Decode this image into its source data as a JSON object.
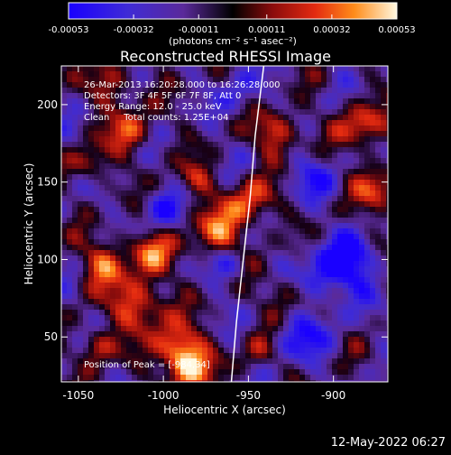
{
  "chart_data": {
    "type": "heatmap",
    "title": "Reconstructed RHESSI Image",
    "xlabel": "Heliocentric X (arcsec)",
    "ylabel": "Heliocentric Y (arcsec)",
    "xlim": [
      -1060,
      -868
    ],
    "ylim": [
      21,
      225
    ],
    "x_ticks": [
      -1050,
      -1000,
      -950,
      -900
    ],
    "y_ticks": [
      50,
      100,
      150,
      200
    ],
    "colorbar": {
      "min": -0.00053,
      "max": 0.00053,
      "tick_values": [
        -0.00053,
        -0.00032,
        -0.00011,
        0.00011,
        0.00032,
        0.00053
      ],
      "tick_labels": [
        "-0.00053",
        "-0.00032",
        "-0.00011",
        "0.00011",
        "0.00032",
        "0.00053"
      ],
      "unit_label": "(photons cm⁻² s⁻¹ asec⁻²)"
    },
    "annotations": [
      "26-Mar-2013 16:20:28.000 to 16:26:28.000",
      "Detectors: 3F 4F 5F 6F 7F 8F, Att 0",
      "Energy Range: 12.0 - 25.0 keV",
      "Clean     Total counts: 1.25E+04"
    ],
    "peak_text": "Position of Peak = [-984,34]",
    "limb_curve": {
      "x": [
        -960,
        -957,
        -953,
        -949,
        -946,
        -941
      ],
      "y": [
        21,
        60,
        100,
        140,
        180,
        225
      ]
    }
  },
  "footer": {
    "timestamp": "12-May-2022 06:27"
  }
}
